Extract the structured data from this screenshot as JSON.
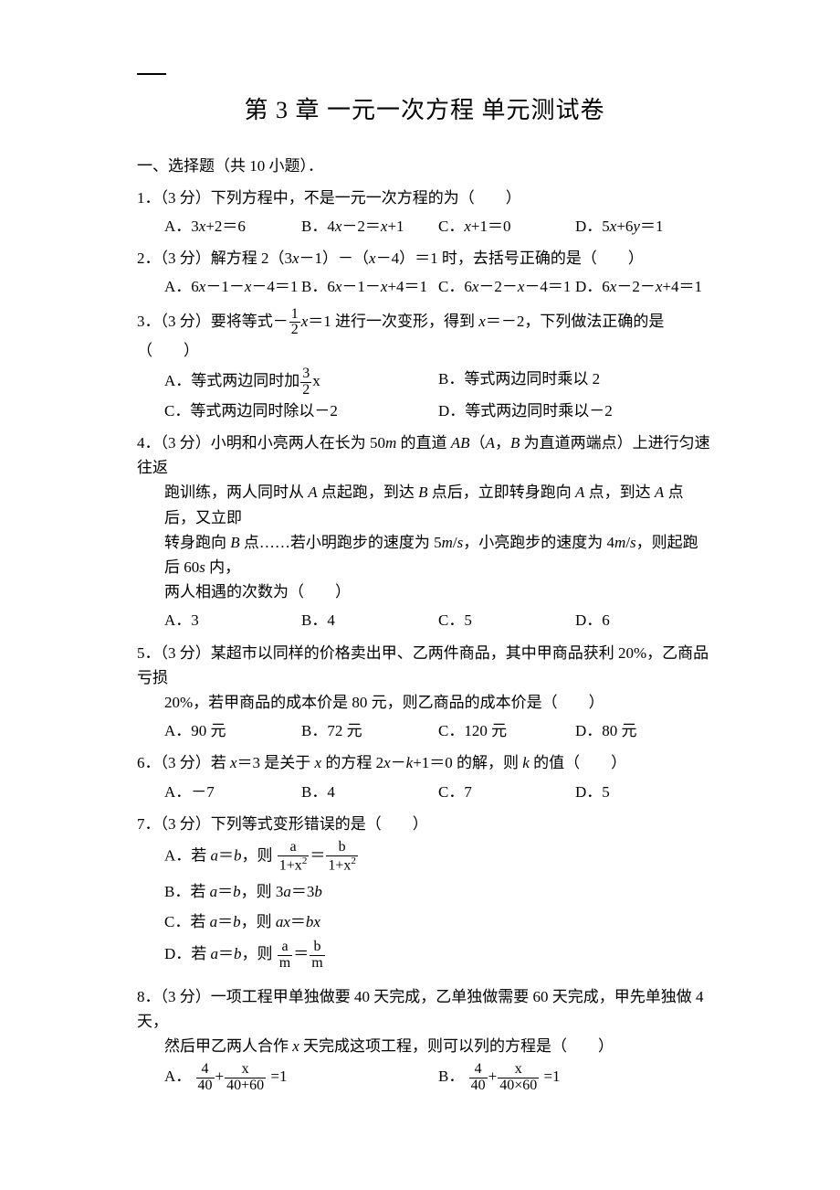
{
  "title": "第 3 章 一元一次方程 单元测试卷",
  "section1": "一、选择题（共 10 小题）．",
  "q1": {
    "stem": "1．（3 分）下列方程中，不是一元一次方程的为（　　）",
    "A": "A．3x+2＝6",
    "B": "B．4x－2＝x+1",
    "C": "C．x+1＝0",
    "D": "D．5x+6y＝1"
  },
  "q2": {
    "stem": "2．（3 分）解方程 2（3x－1）－（x－4）＝1 时，去括号正确的是（　　）",
    "A": "A．6x－1－x－4＝1",
    "B": "B．6x－1－x+4＝1",
    "C": "C．6x－2－x－4＝1",
    "D": "D．6x－2－x+4＝1"
  },
  "q3": {
    "pre": "3．（3 分）要将等式－",
    "mid": "x＝1 进行一次变形，得到 x＝－2，下列做法正确的是（　　）",
    "Apre": "A．等式两边同时加",
    "B": "B．等式两边同时乘以 2",
    "C": "C．等式两边同时除以－2",
    "D": "D．等式两边同时乘以－2"
  },
  "q4": {
    "l1": "4．（3 分）小明和小亮两人在长为 50m 的直道 AB（A，B 为直道两端点）上进行匀速往返",
    "l2": "跑训练，两人同时从 A 点起跑，到达 B 点后，立即转身跑向 A 点，到达 A 点后，又立即",
    "l3": "转身跑向 B 点……若小明跑步的速度为 5m/s，小亮跑步的速度为 4m/s，则起跑后 60s 内，",
    "l4": "两人相遇的次数为（　　）",
    "A": "A．3",
    "B": "B．4",
    "C": "C．5",
    "D": "D．6"
  },
  "q5": {
    "l1": "5．（3 分）某超市以同样的价格卖出甲、乙两件商品，其中甲商品获利 20%，乙商品亏损",
    "l2": "20%，若甲商品的成本价是 80 元，则乙商品的成本价是（　　）",
    "A": "A．90 元",
    "B": "B．72 元",
    "C": "C．120 元",
    "D": "D．80 元"
  },
  "q6": {
    "stem": "6．（3 分）若 x＝3 是关于 x 的方程 2x－k+1＝0 的解，则 k 的值（　　）",
    "A": "A．－7",
    "B": "B．4",
    "C": "C．7",
    "D": "D．5"
  },
  "q7": {
    "stem": "7．（3 分）下列等式变形错误的是（　　）",
    "Apre": "A．若 a＝b，则",
    "Bpre": "B．若 a＝b，则 3a＝3b",
    "Cpre": "C．若 a＝b，则 ax＝bx",
    "Dpre": "D．若 a＝b，则"
  },
  "q8": {
    "l1": "8．（3 分）一项工程甲单独做要 40 天完成，乙单独做需要 60 天完成，甲先单独做 4 天，",
    "l2": "然后甲乙两人合作 x 天完成这项工程，则可以列的方程是（　　）",
    "Apre": "A．",
    "Bpre": "B．",
    "Aeq": " =1",
    "Beq": " =1"
  },
  "fracs": {
    "half": {
      "n": "1",
      "d": "2"
    },
    "threehalf": {
      "n": "3",
      "d": "2"
    },
    "a_1x2": {
      "n": "a",
      "d": "1+x"
    },
    "b_1x2": {
      "n": "b",
      "d": "1+x"
    },
    "a_m": {
      "n": "a",
      "d": "m"
    },
    "b_m": {
      "n": "b",
      "d": "m"
    },
    "f4_40": {
      "n": "4",
      "d": "40"
    },
    "x_4060": {
      "n": "x",
      "d": "40+60"
    },
    "x_40x60": {
      "n": "x",
      "d": "40×60"
    }
  }
}
